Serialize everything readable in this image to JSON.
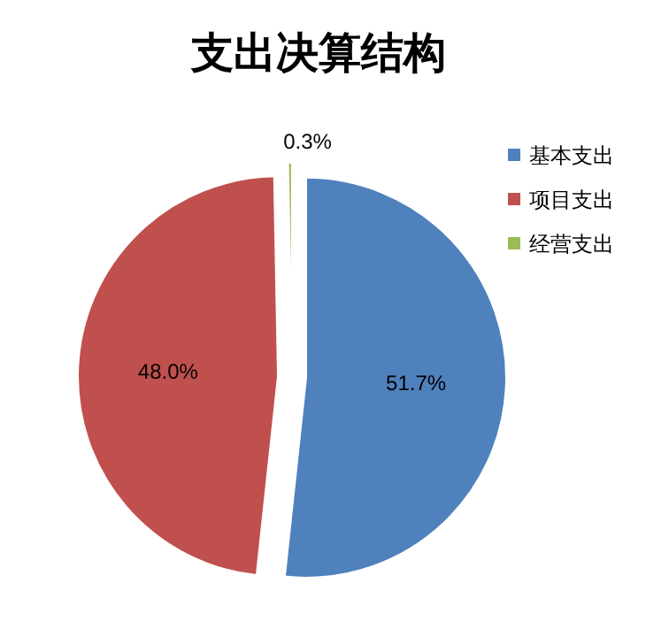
{
  "chart_data": {
    "type": "pie",
    "title": "支出决算结构",
    "categories": [
      "基本支出",
      "项目支出",
      "经营支出"
    ],
    "values": [
      51.7,
      48.0,
      0.3
    ],
    "colors": [
      "#4f81bd",
      "#c0504d",
      "#9bbb59"
    ],
    "value_labels": [
      "51.7%",
      "48.0%",
      "0.3%"
    ],
    "legend": "right"
  }
}
